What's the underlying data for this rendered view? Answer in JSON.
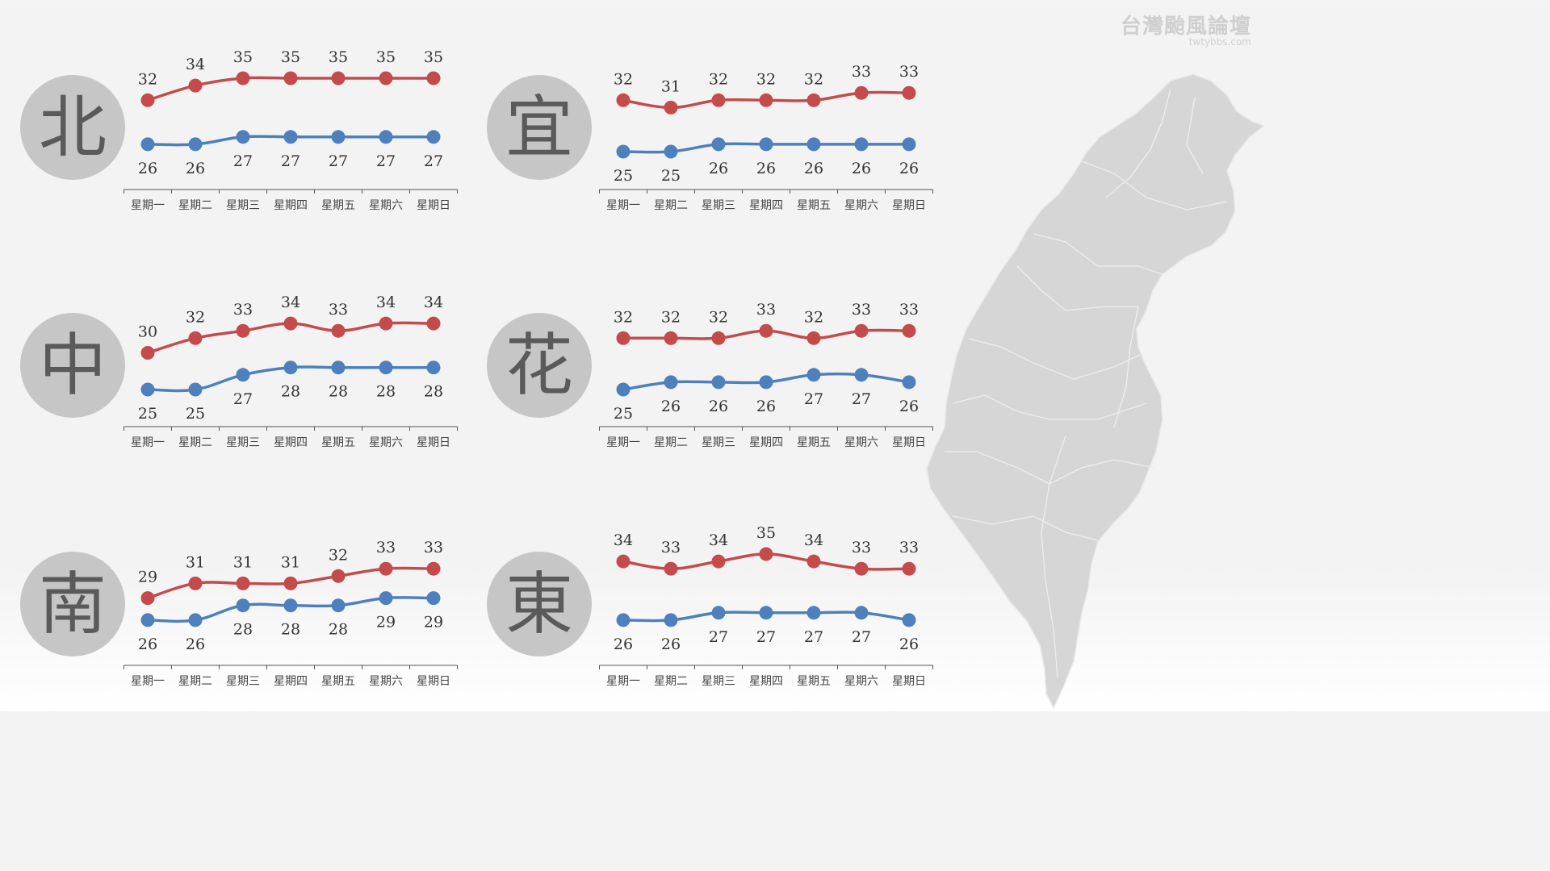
{
  "watermark": {
    "title": "台灣颱風論壇",
    "subtitle": "twtybbs.com"
  },
  "colors": {
    "high": "#c44b4b",
    "low": "#4e80bd",
    "circle": "#c6c6c6",
    "map": "#d6d6d6"
  },
  "map_icon": "taiwan-map",
  "chart_data": [
    {
      "type": "line",
      "region": "北",
      "categories": [
        "星期一",
        "星期二",
        "星期三",
        "星期四",
        "星期五",
        "星期六",
        "星期日"
      ],
      "series": [
        {
          "values": [
            32,
            34,
            35,
            35,
            35,
            35,
            35
          ]
        },
        {
          "values": [
            26,
            26,
            27,
            27,
            27,
            27,
            27
          ]
        }
      ]
    },
    {
      "type": "line",
      "region": "宜",
      "categories": [
        "星期一",
        "星期二",
        "星期三",
        "星期四",
        "星期五",
        "星期六",
        "星期日"
      ],
      "series": [
        {
          "values": [
            32,
            31,
            32,
            32,
            32,
            33,
            33
          ]
        },
        {
          "values": [
            25,
            25,
            26,
            26,
            26,
            26,
            26
          ]
        }
      ]
    },
    {
      "type": "line",
      "region": "中",
      "categories": [
        "星期一",
        "星期二",
        "星期三",
        "星期四",
        "星期五",
        "星期六",
        "星期日"
      ],
      "series": [
        {
          "values": [
            30,
            32,
            33,
            34,
            33,
            34,
            34
          ]
        },
        {
          "values": [
            25,
            25,
            27,
            28,
            28,
            28,
            28
          ]
        }
      ]
    },
    {
      "type": "line",
      "region": "花",
      "categories": [
        "星期一",
        "星期二",
        "星期三",
        "星期四",
        "星期五",
        "星期六",
        "星期日"
      ],
      "series": [
        {
          "values": [
            32,
            32,
            32,
            33,
            32,
            33,
            33
          ]
        },
        {
          "values": [
            25,
            26,
            26,
            26,
            27,
            27,
            26
          ]
        }
      ]
    },
    {
      "type": "line",
      "region": "南",
      "categories": [
        "星期一",
        "星期二",
        "星期三",
        "星期四",
        "星期五",
        "星期六",
        "星期日"
      ],
      "series": [
        {
          "values": [
            29,
            31,
            31,
            31,
            32,
            33,
            33
          ]
        },
        {
          "values": [
            26,
            26,
            28,
            28,
            28,
            29,
            29
          ]
        }
      ]
    },
    {
      "type": "line",
      "region": "東",
      "categories": [
        "星期一",
        "星期二",
        "星期三",
        "星期四",
        "星期五",
        "星期六",
        "星期日"
      ],
      "series": [
        {
          "values": [
            34,
            33,
            34,
            35,
            34,
            33,
            33
          ]
        },
        {
          "values": [
            26,
            26,
            27,
            27,
            27,
            27,
            26
          ]
        }
      ]
    }
  ]
}
